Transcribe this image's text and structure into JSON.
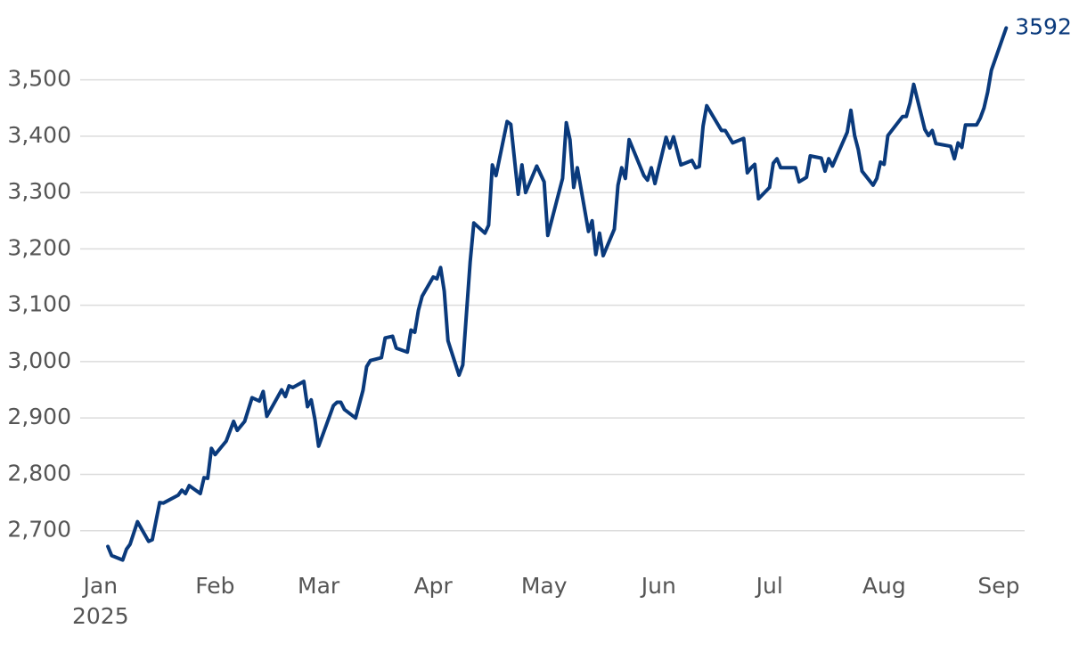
{
  "chart_data": {
    "type": "line",
    "x": [
      2,
      3,
      6,
      7,
      8,
      10,
      13,
      14,
      16,
      17,
      21,
      22,
      23,
      24,
      27,
      28,
      29,
      30,
      31,
      34,
      36,
      37,
      39,
      41,
      43,
      44,
      45,
      49,
      50,
      51,
      52,
      55,
      56,
      57,
      58,
      59,
      63,
      64,
      65,
      66,
      69,
      71,
      72,
      73,
      76,
      77,
      79,
      80,
      83,
      84,
      85,
      86,
      87,
      90,
      91,
      92,
      93,
      94,
      97,
      98,
      100,
      101,
      104,
      105,
      106,
      107,
      110,
      111,
      113,
      114,
      115,
      118,
      120,
      121,
      125,
      126,
      127,
      128,
      129,
      132,
      133,
      134,
      135,
      136,
      139,
      140,
      141,
      142,
      143,
      147,
      148,
      149,
      150,
      153,
      154,
      155,
      157,
      160,
      161,
      162,
      163,
      164,
      168,
      169,
      171,
      174,
      175,
      176,
      177,
      178,
      181,
      182,
      183,
      184,
      188,
      189,
      191,
      192,
      195,
      196,
      197,
      198,
      202,
      203,
      204,
      205,
      206,
      209,
      210,
      211,
      212,
      213,
      217,
      218,
      219,
      220,
      223,
      224,
      225,
      226,
      230,
      231,
      232,
      233,
      234,
      237,
      238,
      239,
      240,
      241,
      245
    ],
    "values": [
      2672,
      2656,
      2648,
      2667,
      2676,
      2716,
      2681,
      2684,
      2750,
      2749,
      2763,
      2772,
      2766,
      2780,
      2766,
      2794,
      2793,
      2846,
      2835,
      2859,
      2894,
      2878,
      2894,
      2936,
      2930,
      2947,
      2903,
      2950,
      2938,
      2957,
      2954,
      2965,
      2920,
      2932,
      2898,
      2850,
      2922,
      2928,
      2928,
      2915,
      2900,
      2949,
      2991,
      3002,
      3007,
      3042,
      3045,
      3024,
      3017,
      3056,
      3052,
      3091,
      3116,
      3150,
      3147,
      3167,
      3125,
      3037,
      2976,
      2994,
      3177,
      3246,
      3228,
      3242,
      3349,
      3330,
      3426,
      3421,
      3297,
      3349,
      3300,
      3347,
      3319,
      3224,
      3325,
      3424,
      3394,
      3309,
      3344,
      3231,
      3250,
      3190,
      3228,
      3188,
      3235,
      3313,
      3344,
      3325,
      3394,
      3330,
      3322,
      3344,
      3316,
      3398,
      3379,
      3399,
      3349,
      3357,
      3344,
      3346,
      3418,
      3454,
      3410,
      3410,
      3388,
      3396,
      3335,
      3344,
      3350,
      3289,
      3309,
      3352,
      3360,
      3344,
      3344,
      3319,
      3327,
      3365,
      3361,
      3338,
      3360,
      3347,
      3407,
      3446,
      3401,
      3376,
      3338,
      3313,
      3325,
      3354,
      3350,
      3401,
      3435,
      3435,
      3459,
      3492,
      3412,
      3401,
      3410,
      3387,
      3382,
      3360,
      3388,
      3380,
      3420,
      3420,
      3432,
      3450,
      3478,
      3517,
      3592
    ],
    "color": "#0a3a7c",
    "xlim": [
      -5.5,
      250
    ],
    "xticks": [
      {
        "value": 0,
        "label": "Jan\n2025"
      },
      {
        "value": 31,
        "label": "Feb"
      },
      {
        "value": 59,
        "label": "Mar"
      },
      {
        "value": 90,
        "label": "Apr"
      },
      {
        "value": 120,
        "label": "May"
      },
      {
        "value": 151,
        "label": "Jun"
      },
      {
        "value": 181,
        "label": "Jul"
      },
      {
        "value": 212,
        "label": "Aug"
      },
      {
        "value": 243,
        "label": "Sep"
      }
    ],
    "ylim": [
      2630,
      3610
    ],
    "yticks": [
      {
        "value": 2700,
        "label": "2,700"
      },
      {
        "value": 2800,
        "label": "2,800"
      },
      {
        "value": 2900,
        "label": "2,900"
      },
      {
        "value": 3000,
        "label": "3,000"
      },
      {
        "value": 3100,
        "label": "3,100"
      },
      {
        "value": 3200,
        "label": "3,200"
      },
      {
        "value": 3300,
        "label": "3,300"
      },
      {
        "value": 3400,
        "label": "3,400"
      },
      {
        "value": 3500,
        "label": "3,500"
      }
    ],
    "grid": true
  }
}
